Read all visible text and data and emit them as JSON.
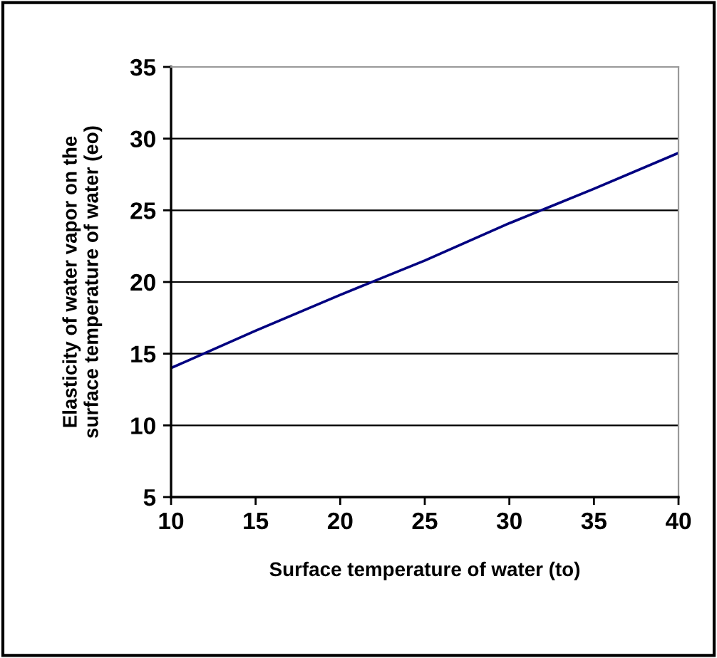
{
  "chart_data": {
    "type": "line",
    "xlabel": "Surface temperature of water (to)",
    "ylabel": "Elasticity of water vapor on the\nsurface temperature of water (eo)",
    "x": [
      10,
      15,
      20,
      25,
      30,
      35,
      40
    ],
    "series": [
      {
        "color": "#000080",
        "values": [
          14.0,
          16.6,
          19.1,
          21.5,
          24.1,
          26.5,
          29.0
        ]
      }
    ],
    "xlim": [
      10,
      40
    ],
    "xticks": [
      10,
      15,
      20,
      25,
      30,
      35,
      40
    ],
    "ylim": [
      5,
      35
    ],
    "yticks": [
      5,
      10,
      15,
      20,
      25,
      30,
      35
    ],
    "grid": "y",
    "marker": "none",
    "line_style": "solid"
  }
}
